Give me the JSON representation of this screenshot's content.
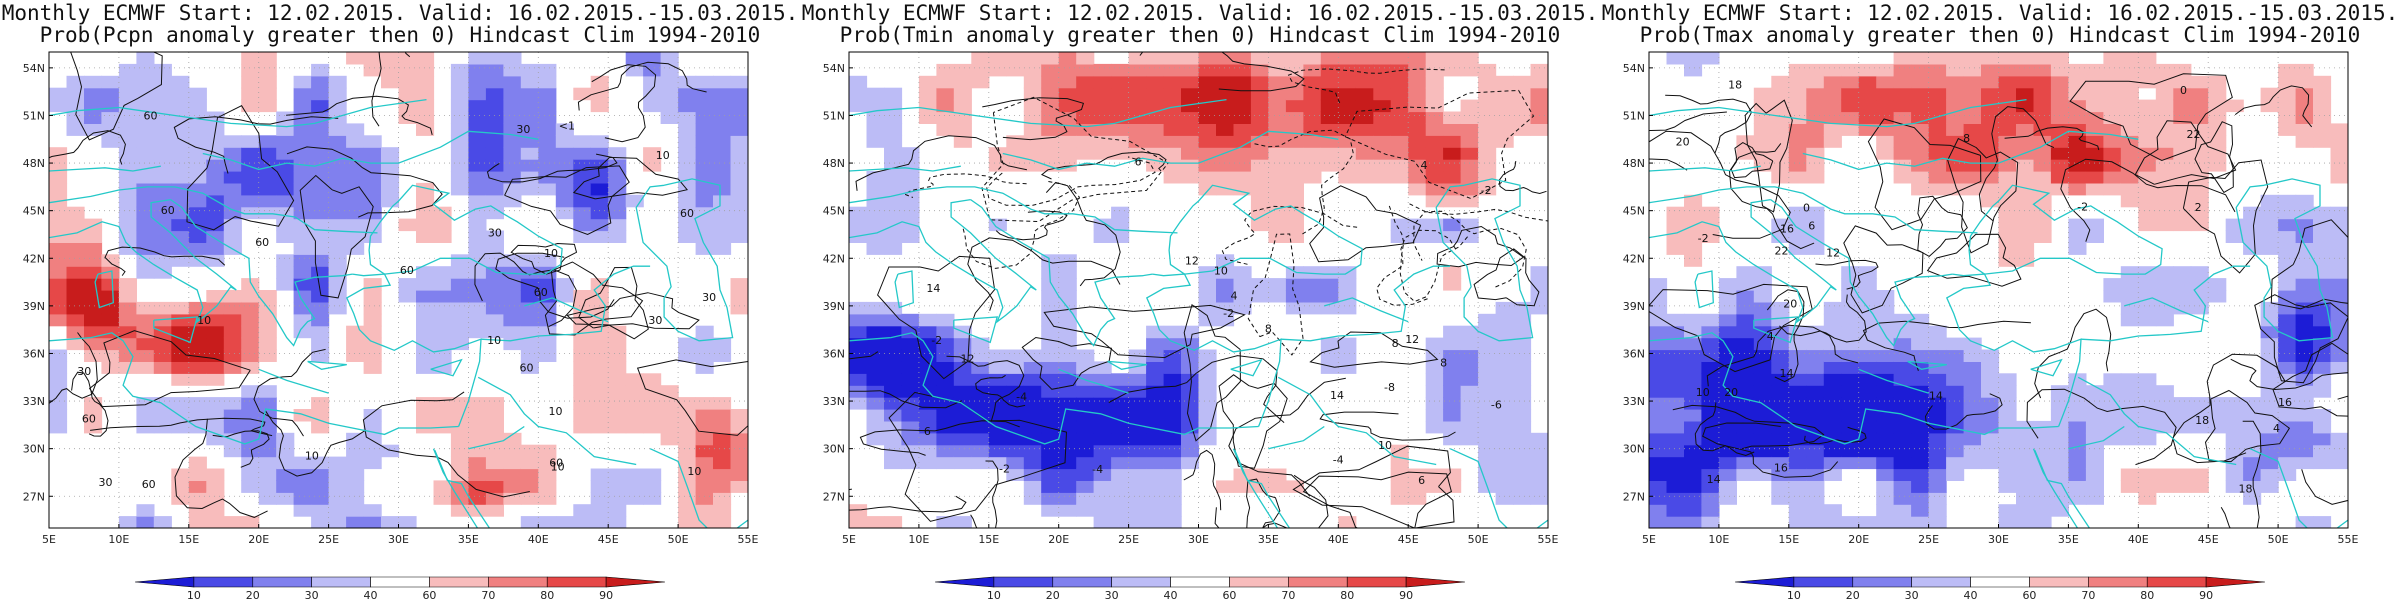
{
  "panels": [
    {
      "id": "pcpn",
      "title_line1": "Monthly ECMWF Start: 12.02.2015. Valid: 16.02.2015.-15.03.2015.",
      "title_line2": "Prob(Pcpn anomaly greater then 0) Hindcast Clim 1994-2010",
      "contour_labels": [
        "60",
        "30",
        "60",
        "30",
        "10",
        "60",
        "30",
        "10",
        "60",
        "60",
        "10",
        "60",
        "60",
        "30",
        "60",
        "30",
        "60",
        "10",
        "10",
        "10",
        "30",
        "10",
        "60",
        "<1",
        "10"
      ]
    },
    {
      "id": "tmin",
      "title_line1": "Monthly ECMWF Start: 12.02.2015. Valid: 16.02.2015.-15.03.2015.",
      "title_line2": "Prob(Tmin anomaly greater then 0) Hindcast Clim 1994-2010",
      "contour_labels": [
        "-2",
        "-8",
        "-4",
        "-4",
        "-2",
        "-4",
        "-2",
        "-2",
        "4",
        "8",
        "12",
        "10",
        "14",
        "12",
        "6",
        "14",
        "12",
        "6",
        "8",
        "-6",
        "4",
        "6",
        "10",
        "8"
      ]
    },
    {
      "id": "tmax",
      "title_line1": "Monthly ECMWF Start: 12.02.2015. Valid: 16.02.2015.-15.03.2015.",
      "title_line2": "Prob(Tmax anomaly greater then 0) Hindcast Clim 1994-2010",
      "contour_labels": [
        "4",
        "0",
        "-2",
        "4",
        "2",
        "-2",
        "0",
        "12",
        "14",
        "18",
        "16",
        "18",
        "20",
        "16",
        "18",
        "20",
        "22",
        "20",
        "14",
        "10",
        "16",
        "6",
        "8",
        "14",
        "22"
      ]
    }
  ],
  "map": {
    "lat_ticks": [
      "54N",
      "51N",
      "48N",
      "45N",
      "42N",
      "39N",
      "36N",
      "33N",
      "30N",
      "27N"
    ],
    "lon_ticks": [
      "5E",
      "10E",
      "15E",
      "20E",
      "25E",
      "30E",
      "35E",
      "40E",
      "45E",
      "50E",
      "55E"
    ],
    "lat_range": [
      25,
      55
    ],
    "lon_range": [
      5,
      55
    ]
  },
  "colorbar": {
    "labels": [
      "10",
      "20",
      "30",
      "40",
      "60",
      "70",
      "80",
      "90"
    ],
    "colors": [
      "#1c1cd6",
      "#4a4ae6",
      "#8080ee",
      "#bcbcf6",
      "#ffffff",
      "#f8bcbc",
      "#f08080",
      "#e64848",
      "#c81c1c"
    ]
  },
  "colors": {
    "coastline": "#24c8c8",
    "contour": "#111111",
    "grid": "#a0a0a0"
  }
}
